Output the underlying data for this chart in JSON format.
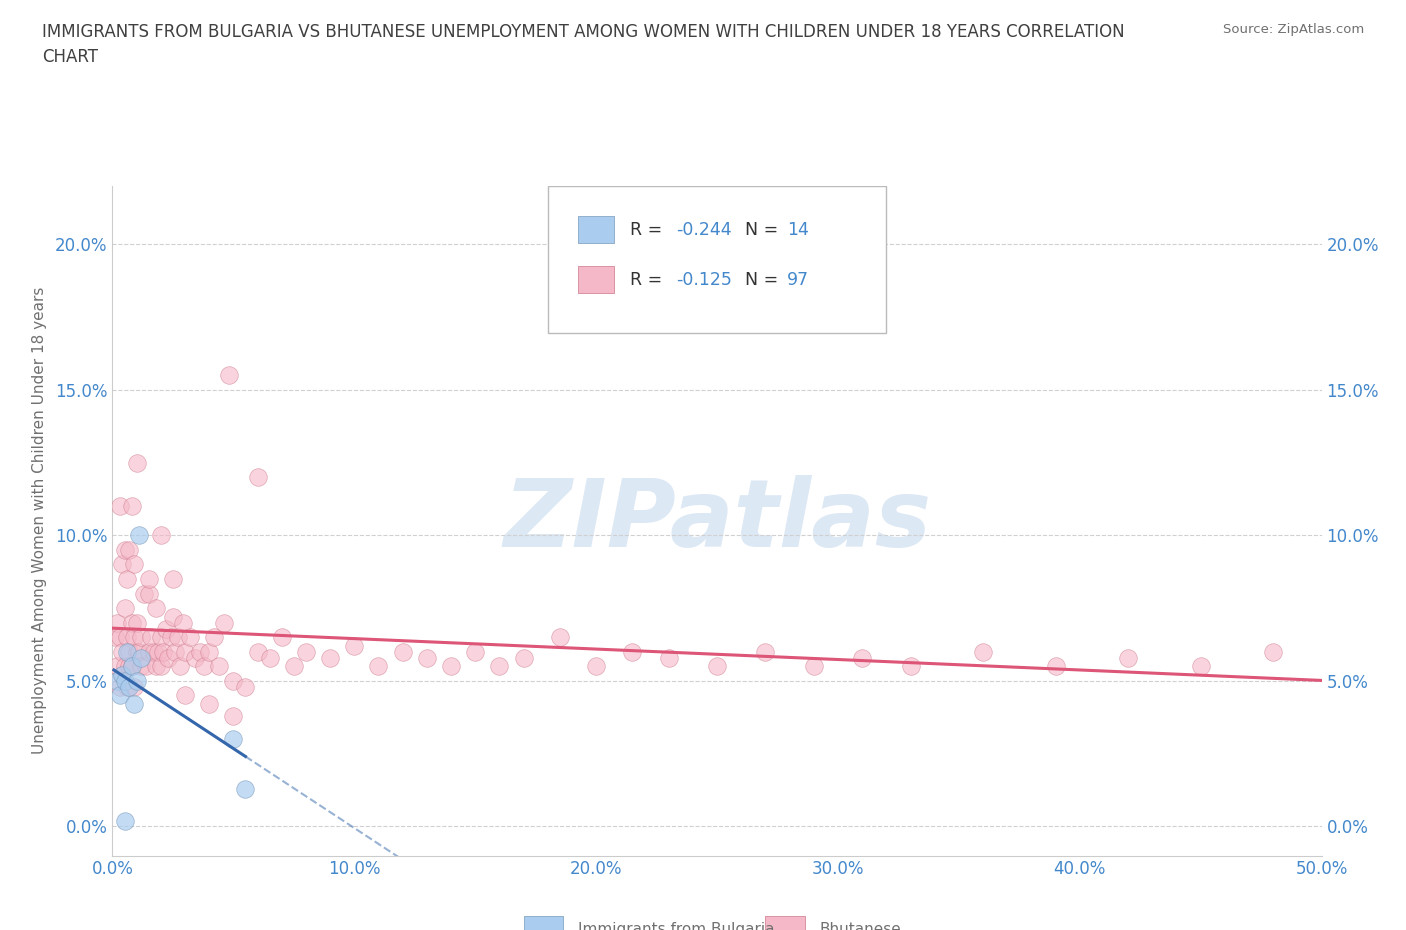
{
  "title_line1": "IMMIGRANTS FROM BULGARIA VS BHUTANESE UNEMPLOYMENT AMONG WOMEN WITH CHILDREN UNDER 18 YEARS CORRELATION",
  "title_line2": "CHART",
  "source": "Source: ZipAtlas.com",
  "ylabel": "Unemployment Among Women with Children Under 18 years",
  "xlim": [
    0.0,
    0.5
  ],
  "ylim": [
    -0.01,
    0.22
  ],
  "yticks": [
    0.0,
    0.05,
    0.1,
    0.15,
    0.2
  ],
  "xticks": [
    0.0,
    0.1,
    0.2,
    0.3,
    0.4,
    0.5
  ],
  "tick_color": "#4488cc",
  "axis_label_color": "#707070",
  "title_color": "#404040",
  "grid_color": "#d0d0d0",
  "background_color": "#ffffff",
  "watermark_color": "#dde8f5",
  "bulgaria_color": "#aaccee",
  "bulgaria_edge": "#7799bb",
  "bhutanese_color": "#f5b8c8",
  "bhutanese_edge": "#cc7788",
  "bulgaria_line_color": "#3366aa",
  "bhutanese_line_color": "#dd5577",
  "legend_r1": "-0.244",
  "legend_n1": "14",
  "legend_r2": "-0.125",
  "legend_n2": "97",
  "legend_label1": "Immigrants from Bulgaria",
  "legend_label2": "Bhutanese",
  "bulgaria_x": [
    0.002,
    0.003,
    0.004,
    0.005,
    0.006,
    0.007,
    0.008,
    0.009,
    0.01,
    0.011,
    0.012,
    0.05,
    0.055,
    0.005
  ],
  "bulgaria_y": [
    0.05,
    0.045,
    0.052,
    0.05,
    0.06,
    0.048,
    0.055,
    0.042,
    0.05,
    0.1,
    0.058,
    0.03,
    0.013,
    0.002
  ],
  "bhutanese_x": [
    0.001,
    0.002,
    0.002,
    0.003,
    0.003,
    0.004,
    0.004,
    0.005,
    0.005,
    0.006,
    0.006,
    0.007,
    0.007,
    0.008,
    0.008,
    0.009,
    0.009,
    0.01,
    0.01,
    0.011,
    0.012,
    0.012,
    0.013,
    0.014,
    0.015,
    0.015,
    0.016,
    0.017,
    0.018,
    0.018,
    0.019,
    0.02,
    0.02,
    0.021,
    0.022,
    0.023,
    0.024,
    0.025,
    0.026,
    0.027,
    0.028,
    0.029,
    0.03,
    0.032,
    0.034,
    0.036,
    0.038,
    0.04,
    0.042,
    0.044,
    0.046,
    0.048,
    0.05,
    0.055,
    0.06,
    0.065,
    0.07,
    0.075,
    0.08,
    0.09,
    0.1,
    0.11,
    0.12,
    0.13,
    0.14,
    0.15,
    0.16,
    0.17,
    0.185,
    0.2,
    0.215,
    0.23,
    0.25,
    0.27,
    0.29,
    0.31,
    0.33,
    0.36,
    0.39,
    0.42,
    0.45,
    0.48,
    0.003,
    0.004,
    0.005,
    0.006,
    0.007,
    0.008,
    0.009,
    0.01,
    0.015,
    0.02,
    0.025,
    0.03,
    0.04,
    0.05,
    0.06
  ],
  "bhutanese_y": [
    0.065,
    0.055,
    0.07,
    0.048,
    0.065,
    0.052,
    0.06,
    0.055,
    0.075,
    0.048,
    0.065,
    0.055,
    0.06,
    0.055,
    0.07,
    0.048,
    0.065,
    0.06,
    0.07,
    0.06,
    0.055,
    0.065,
    0.08,
    0.055,
    0.06,
    0.08,
    0.065,
    0.06,
    0.055,
    0.075,
    0.06,
    0.065,
    0.055,
    0.06,
    0.068,
    0.058,
    0.065,
    0.072,
    0.06,
    0.065,
    0.055,
    0.07,
    0.06,
    0.065,
    0.058,
    0.06,
    0.055,
    0.06,
    0.065,
    0.055,
    0.07,
    0.155,
    0.05,
    0.048,
    0.06,
    0.058,
    0.065,
    0.055,
    0.06,
    0.058,
    0.062,
    0.055,
    0.06,
    0.058,
    0.055,
    0.06,
    0.055,
    0.058,
    0.065,
    0.055,
    0.06,
    0.058,
    0.055,
    0.06,
    0.055,
    0.058,
    0.055,
    0.06,
    0.055,
    0.058,
    0.055,
    0.06,
    0.11,
    0.09,
    0.095,
    0.085,
    0.095,
    0.11,
    0.09,
    0.125,
    0.085,
    0.1,
    0.085,
    0.045,
    0.042,
    0.038,
    0.12
  ]
}
